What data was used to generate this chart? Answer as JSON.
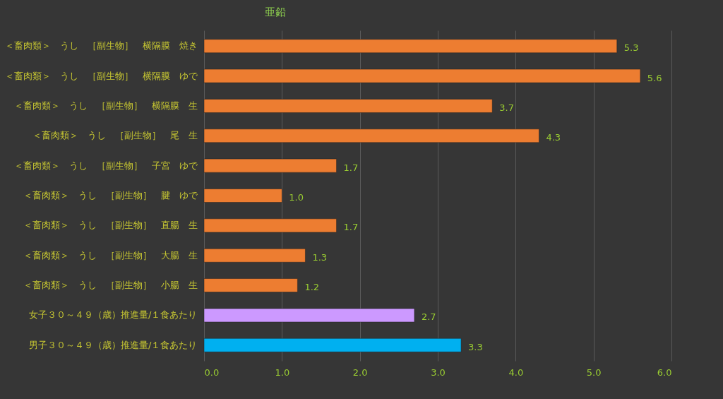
{
  "chart_data": {
    "type": "bar",
    "title": "亜鉛",
    "orientation": "horizontal",
    "categories": [
      "＜畜肉類＞　うし　［副生物］　横隔膜　焼き",
      "＜畜肉類＞　うし　［副生物］　横隔膜　ゆで",
      "＜畜肉類＞　うし　［副生物］　横隔膜　生",
      "＜畜肉類＞　うし　［副生物］　尾　生",
      "＜畜肉類＞　うし　［副生物］　子宮　ゆで",
      "＜畜肉類＞　うし　［副生物］　腱　ゆで",
      "＜畜肉類＞　うし　［副生物］　直腸　生",
      "＜畜肉類＞　うし　［副生物］　大腸　生",
      "＜畜肉類＞　うし　［副生物］　小腸　生",
      "女子３０～４９（歳）推進量/１食あたり",
      "男子３０～４９（歳）推進量/１食あたり"
    ],
    "values": [
      5.3,
      5.6,
      3.7,
      4.3,
      1.7,
      1.0,
      1.7,
      1.3,
      1.2,
      2.7,
      3.3
    ],
    "value_labels": [
      "5.3",
      "5.6",
      "3.7",
      "4.3",
      "1.7",
      "1.0",
      "1.7",
      "1.3",
      "1.2",
      "2.7",
      "3.3"
    ],
    "colors": [
      "#ed7d31",
      "#ed7d31",
      "#ed7d31",
      "#ed7d31",
      "#ed7d31",
      "#ed7d31",
      "#ed7d31",
      "#ed7d31",
      "#ed7d31",
      "#cc99ff",
      "#00b0f0"
    ],
    "xlim": [
      0,
      6
    ],
    "xticks": [
      {
        "value": 0,
        "label": "0.0"
      },
      {
        "value": 1,
        "label": "1.0"
      },
      {
        "value": 2,
        "label": "2.0"
      },
      {
        "value": 3,
        "label": "3.0"
      },
      {
        "value": 4,
        "label": "4.0"
      },
      {
        "value": 5,
        "label": "5.0"
      },
      {
        "value": 6,
        "label": "6.0"
      }
    ],
    "grid": "x"
  }
}
